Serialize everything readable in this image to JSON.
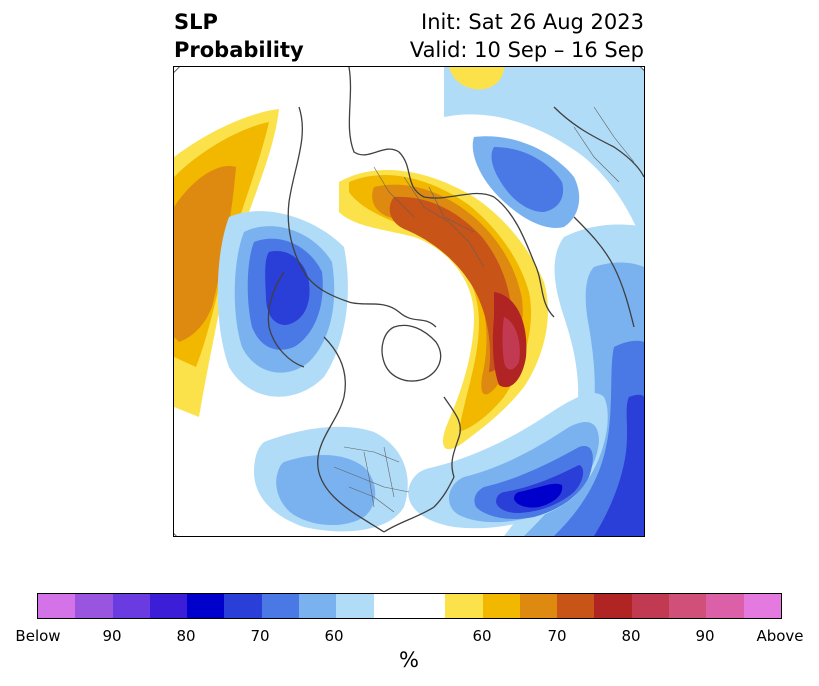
{
  "title": {
    "left_line1": "SLP",
    "left_line2": "Probability",
    "right_line1": "Init: Sat 26 Aug 2023",
    "right_line2": "Valid: 10 Sep – 16 Sep"
  },
  "colorbar": {
    "unit": "%",
    "below_colors": [
      "#d473e8",
      "#9a55e0",
      "#6a3be0",
      "#3c1ed8",
      "#0000cd",
      "#2a3ed8",
      "#4a78e4",
      "#7ab2f0",
      "#b0dcf8"
    ],
    "neutral_color": "#ffffff",
    "above_colors": [
      "#fce24a",
      "#f2b800",
      "#de8a10",
      "#c85418",
      "#b02424",
      "#c23a52",
      "#d0507a",
      "#dc60a8",
      "#e47ae0"
    ],
    "tick_labels": [
      "Below",
      "90",
      "80",
      "70",
      "60",
      "60",
      "70",
      "80",
      "90",
      "Above"
    ]
  },
  "map": {
    "projection": "north-polar-stereographic",
    "colors": {
      "below_light": "#b0dcf8",
      "below_mid": "#7ab2f0",
      "below_dark": "#4a78e4",
      "below_deeper": "#2a3ed8",
      "below_deepest": "#0000cd",
      "above_light": "#fce24a",
      "above_mid": "#f2b800",
      "above_dark": "#de8a10",
      "above_deeper": "#c85418",
      "above_deepest": "#b02424",
      "above_max": "#c23a52",
      "coastline": "#404040"
    }
  }
}
